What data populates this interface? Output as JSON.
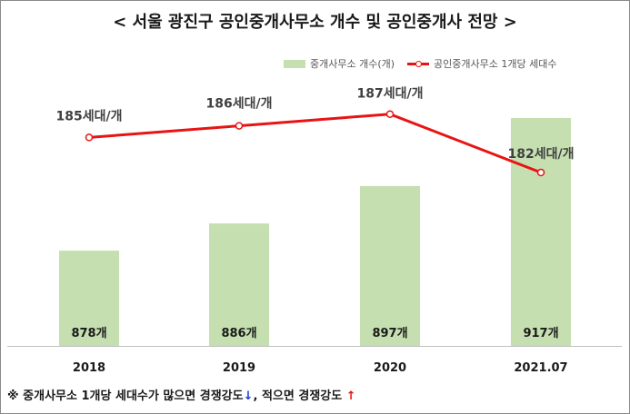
{
  "title": "< 서울 광진구 공인중개사무소 개수 및 공인중개사 전망 >",
  "legend": {
    "bar_label": "중개사무소 개수(개)",
    "line_label": "공인중개사무소 1개당 세대수"
  },
  "footnote": {
    "prefix": "※ 중개사무소 1개당 세대수가 많으면 경쟁강도",
    "down_arrow": "↓",
    "middle": ", 적으면 경쟁강도 ",
    "up_arrow": "↑"
  },
  "colors": {
    "bar": "#c6dfb1",
    "line": "#e81414"
  },
  "chart_data": {
    "type": "bar",
    "categories": [
      "2018",
      "2019",
      "2020",
      "2021.07"
    ],
    "series": [
      {
        "name": "중개사무소 개수(개)",
        "type": "bar",
        "values": [
          878,
          886,
          897,
          917
        ],
        "labels": [
          "878개",
          "886개",
          "897개",
          "917개"
        ]
      },
      {
        "name": "공인중개사무소 1개당 세대수",
        "type": "line",
        "values": [
          185,
          186,
          187,
          182
        ],
        "labels": [
          "185세대/개",
          "186세대/개",
          "187세대/개",
          "182세대/개"
        ]
      }
    ],
    "bar_ylim": [
      850,
      925
    ],
    "line_ylim": [
      175,
      189
    ],
    "legend_position": "top-right",
    "grid": false
  }
}
